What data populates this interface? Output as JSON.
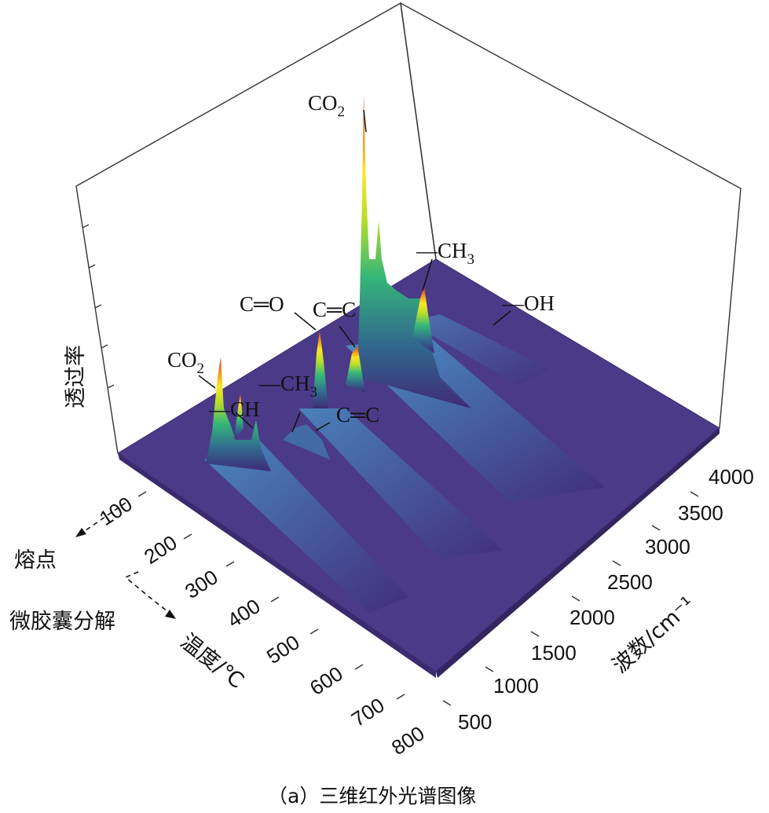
{
  "caption": "（a）三维红外光谱图像",
  "chart_data": {
    "type": "3d-surface",
    "title": "",
    "xlabel": "温度/℃",
    "ylabel": "波数/cm⁻¹",
    "zlabel": "透过率",
    "temperature_ticks": [
      "100",
      "200",
      "300",
      "400",
      "500",
      "600",
      "700",
      "800"
    ],
    "wavenumber_ticks": [
      "500",
      "1000",
      "1500",
      "2000",
      "2500",
      "3000",
      "3500",
      "4000"
    ],
    "xlim": [
      50,
      800
    ],
    "ylim": [
      400,
      4000
    ],
    "colormap": [
      "#3f2a78",
      "#31688e",
      "#35b779",
      "#fde725",
      "#d62a1f"
    ],
    "annotations": {
      "melting_point": "熔点",
      "decomposition": "微胶囊分解"
    },
    "peaks": [
      {
        "label": "CO2",
        "main": "CO",
        "sub": "2",
        "wavenumber": 2350,
        "temperature": 300,
        "height": 0.94
      },
      {
        "label": "—CH3",
        "main": "—CH",
        "sub": "3",
        "wavenumber": 2960,
        "temperature": 300,
        "height": 0.2
      },
      {
        "label": "—OH",
        "main": "—OH",
        "sub": "",
        "wavenumber": 3600,
        "temperature": 300,
        "height": 0.05
      },
      {
        "label": "C═O",
        "main": "C═O",
        "sub": "",
        "wavenumber": 1730,
        "temperature": 300,
        "height": 0.3
      },
      {
        "label": "C═C",
        "main": "C═C",
        "sub": "",
        "wavenumber": 1640,
        "temperature": 300,
        "height": 0.22
      },
      {
        "label": "CO2",
        "main": "CO",
        "sub": "2",
        "wavenumber": 670,
        "temperature": 300,
        "height": 0.4
      },
      {
        "label": "—CH",
        "main": "—CH",
        "sub": "",
        "wavenumber": 720,
        "temperature": 300,
        "height": 0.18
      },
      {
        "label": "—CH3",
        "main": "—CH",
        "sub": "3",
        "wavenumber": 1380,
        "temperature": 300,
        "height": 0.15
      },
      {
        "label": "C═C",
        "main": "C═C",
        "sub": "",
        "wavenumber": 1460,
        "temperature": 300,
        "height": 0.12
      }
    ]
  }
}
